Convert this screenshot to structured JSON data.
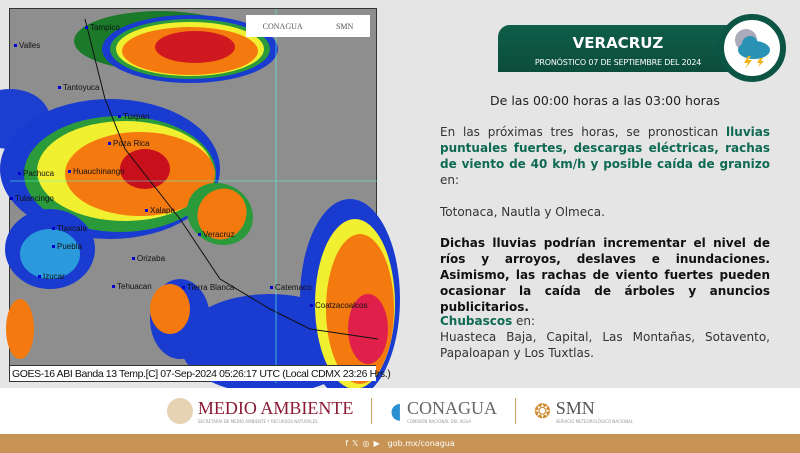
{
  "map": {
    "caption": "GOES-16 ABI Banda 13 Temp.[C] 07-Sep-2024 05:26:17 UTC (Local CDMX  23:26 Hrs.)",
    "logo": {
      "conagua": "CONAGUA",
      "smn": "SMN"
    },
    "cities": [
      "Tampico",
      "Valles",
      "Tantoyuca",
      "Tuxpan",
      "Poza Rica",
      "Huauchinango",
      "Pachuca",
      "Tulancingo",
      "Xalapa",
      "Tlaxcala",
      "Puebla",
      "Veracruz",
      "Orizaba",
      "Izucar",
      "Tehuacan",
      "Tierra Blanca",
      "Catemaco",
      "Coatzacoalcos"
    ]
  },
  "header": {
    "state": "VERACRUZ",
    "subtitle": "PRONÓSTICO 07 DE SEPTIEMBRE DEL 2024",
    "weather_icon": "storm-cloud-moon-icon",
    "accent": "#0e6a52"
  },
  "hours": "De las 00:00 horas a las 03:00 horas",
  "p1": {
    "pre": "En las próximas tres horas, se pronostican ",
    "hl": "lluvias puntuales fuertes, descargas eléctricas, rachas de viento de 40 km/h y posible caída de granizo",
    "post": " en:"
  },
  "p2": "Totonaca, Nautla y Olmeca.",
  "p3": "Dichas lluvias podrían incrementar el nivel de ríos y arroyos, deslaves e inundaciones. Asimismo, las rachas de viento fuertes pueden ocasionar la caída de árboles y anuncios publicitarios.",
  "p4": {
    "hl": "Chubascos",
    "post": " en:",
    "regions": "Huasteca Baja, Capital, Las Montañas, Sotavento, Papaloapan y Los Tuxtlas."
  },
  "footer": {
    "medio": "MEDIO AMBIENTE",
    "medio_sub": "SECRETARÍA DE MEDIO AMBIENTE Y RECURSOS NATURALES",
    "conagua": "CONAGUA",
    "conagua_sub": "COMISIÓN NACIONAL DEL AGUA",
    "smn": "SMN",
    "smn_sub": "SERVICIO METEOROLÓGICO NACIONAL",
    "url": "gob.mx/conagua",
    "social": [
      "facebook-icon",
      "x-icon",
      "instagram-icon",
      "youtube-icon"
    ]
  }
}
